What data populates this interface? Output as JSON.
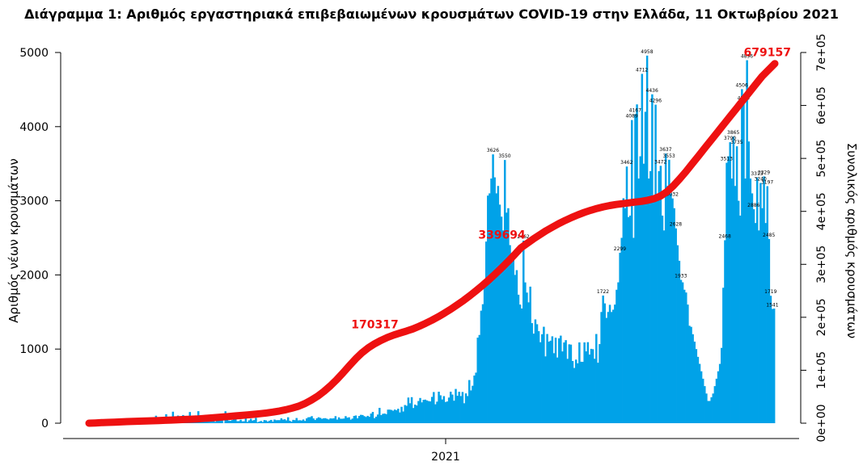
{
  "chart_data": {
    "type": "bar",
    "title": "Διάγραμμα 1: Αριθμός εργαστηριακά επιβεβαιωμένων κρουσμάτων COVID-19 στην Ελλάδα, 11 Οκτωβρίου 2021",
    "xlabel": "",
    "x_tick_labels": [
      "2021"
    ],
    "ylabel": "Αριθμός νέων κρουσμάτων",
    "ylabel_right": "Συνολικός αριθμός κρουσμάτων",
    "ylim": [
      0,
      5000
    ],
    "y_ticks": [
      0,
      1000,
      2000,
      3000,
      4000,
      5000
    ],
    "ylim_right": [
      0,
      700000
    ],
    "y_ticks_right": [
      "0e+00",
      "1e+05",
      "2e+05",
      "3e+05",
      "4e+05",
      "5e+05",
      "6e+05",
      "7e+05"
    ],
    "bar_color": "#00a2e8",
    "line_color": "#ee1111",
    "grid": false,
    "annotations": [
      "170317",
      "339694",
      "679157"
    ],
    "series": [
      {
        "name": "",
        "type": "bar",
        "axis": "left",
        "values": [
          0,
          0,
          0,
          2,
          2,
          1,
          2,
          0,
          5,
          1,
          4,
          5,
          2,
          4,
          13,
          2,
          3,
          11,
          2,
          1,
          9,
          0,
          18,
          41,
          17,
          8,
          42,
          23,
          21,
          45,
          9,
          29,
          13,
          44,
          53,
          12,
          45,
          46,
          65,
          101,
          8,
          43,
          49,
          48,
          66,
          121,
          43,
          48,
          83,
          155,
          43,
          81,
          103,
          26,
          49,
          110,
          24,
          41,
          49,
          151,
          35,
          12,
          22,
          32,
          162,
          53,
          99,
          39,
          25,
          105,
          30,
          38,
          110,
          55,
          18,
          58,
          40,
          47,
          113,
          2,
          161,
          54,
          35,
          32,
          42,
          50,
          60,
          27,
          28,
          47,
          25,
          26,
          65,
          17,
          38,
          60,
          35,
          42,
          72,
          12,
          22,
          30,
          16,
          42,
          38,
          22,
          34,
          44,
          21,
          49,
          40,
          41,
          41,
          66,
          48,
          53,
          38,
          80,
          33,
          20,
          45,
          41,
          70,
          38,
          40,
          36,
          50,
          31,
          65,
          80,
          82,
          95,
          64,
          43,
          66,
          80,
          72,
          59,
          66,
          68,
          59,
          50,
          65,
          63,
          66,
          95,
          49,
          79,
          60,
          60,
          63,
          95,
          74,
          80,
          48,
          62,
          98,
          104,
          66,
          98,
          113,
          110,
          95,
          84,
          99,
          86,
          130,
          152,
          68,
          88,
          117,
          207,
          109,
          127,
          130,
          122,
          183,
          183,
          179,
          168,
          184,
          175,
          195,
          145,
          221,
          158,
          245,
          235,
          346,
          269,
          351,
          205,
          251,
          239,
          299,
          340,
          281,
          315,
          318,
          307,
          298,
          294,
          355,
          420,
          255,
          291,
          425,
          376,
          320,
          365,
          286,
          293,
          346,
          425,
          386,
          303,
          462,
          370,
          424,
          366,
          421,
          269,
          402,
          366,
          582,
          442,
          505,
          643,
          682,
          1154,
          1190,
          1518,
          1605,
          1881,
          2450,
          3070,
          3100,
          3300,
          3626,
          3316,
          3100,
          3200,
          2948,
          2786,
          2600,
          3550,
          2840,
          2900,
          2402,
          2195,
          2263,
          2000,
          2064,
          1733,
          1600,
          1547,
          2462,
          1899,
          1762,
          1630,
          1842,
          1350,
          1208,
          1400,
          1335,
          1241,
          1092,
          1200,
          1301,
          901,
          1203,
          1100,
          1113,
          1172,
          944,
          1153,
          886,
          1145,
          1181,
          968,
          1089,
          1120,
          868,
          1064,
          1060,
          839,
          745,
          858,
          808,
          1090,
          829,
          828,
          1090,
          969,
          1093,
          926,
          1003,
          998,
          869,
          1203,
          816,
          1067,
          1500,
          1722,
          1616,
          1420,
          1500,
          1597,
          1500,
          1531,
          1600,
          1800,
          1900,
          2299,
          2500,
          3034,
          2900,
          3462,
          2780,
          2800,
          4089,
          2500,
          4167,
          4300,
          3300,
          3600,
          4712,
          3500,
          4200,
          4958,
          3300,
          3400,
          4436,
          3000,
          4296,
          3000,
          3400,
          3472,
          2800,
          2600,
          3637,
          3200,
          3553,
          3100,
          3032,
          2900,
          2628,
          2400,
          2191,
          1933,
          1900,
          1800,
          1763,
          1600,
          1314,
          1300,
          1200,
          1100,
          1000,
          895,
          800,
          700,
          600,
          500,
          400,
          300,
          300,
          350,
          400,
          500,
          600,
          700,
          800,
          1016,
          1827,
          2468,
          3513,
          3600,
          3790,
          3300,
          3865,
          3200,
          3735,
          3000,
          2800,
          4506,
          4330,
          3300,
          4896,
          3800,
          3300,
          3100,
          2886,
          2700,
          3313,
          2600,
          3240,
          2900,
          3329,
          2700,
          3197,
          2485,
          1719,
          1541,
          1546
        ]
      },
      {
        "name": "",
        "type": "line",
        "axis": "right",
        "values": [
          0,
          500,
          1000,
          1500,
          2000,
          2500,
          3000,
          3400,
          3800,
          4200,
          4600,
          5000,
          5500,
          6000,
          6500,
          7000,
          7500,
          8000,
          8800,
          9700,
          10700,
          11700,
          12700,
          13700,
          14700,
          15700,
          16800,
          18000,
          19400,
          21000,
          23000,
          25500,
          28500,
          32000,
          37000,
          43500,
          51000,
          60000,
          70500,
          82000,
          95000,
          108500,
          121500,
          133000,
          142500,
          150000,
          156500,
          162000,
          166500,
          170317,
          174000,
          178000,
          183000,
          188500,
          194500,
          201000,
          208000,
          215500,
          223500,
          232000,
          241000,
          250500,
          260500,
          271000,
          282000,
          293500,
          305500,
          318000,
          331000,
          339694,
          348000,
          356000,
          363500,
          370500,
          377000,
          383000,
          388500,
          393500,
          398000,
          402000,
          405500,
          408500,
          411000,
          413000,
          414500,
          416000,
          417500,
          419000,
          421000,
          424000,
          429000,
          437000,
          448000,
          461000,
          475000,
          490000,
          505000,
          520000,
          535000,
          550000,
          565000,
          580000,
          595000,
          610000,
          625000,
          640000,
          655000,
          667000,
          679157
        ]
      }
    ],
    "data_labels": [
      "3626",
      "3550",
      "4958",
      "4712",
      "4436",
      "4296",
      "4167",
      "4089",
      "3462",
      "3637",
      "3553",
      "3472",
      "3032",
      "2628",
      "2462",
      "2299",
      "1933",
      "1722",
      "4896",
      "4506",
      "4330",
      "3865",
      "3790",
      "3735",
      "3513",
      "3329",
      "3313",
      "3240",
      "3197",
      "2886",
      "2468",
      "2485",
      "1719",
      "1541"
    ]
  }
}
